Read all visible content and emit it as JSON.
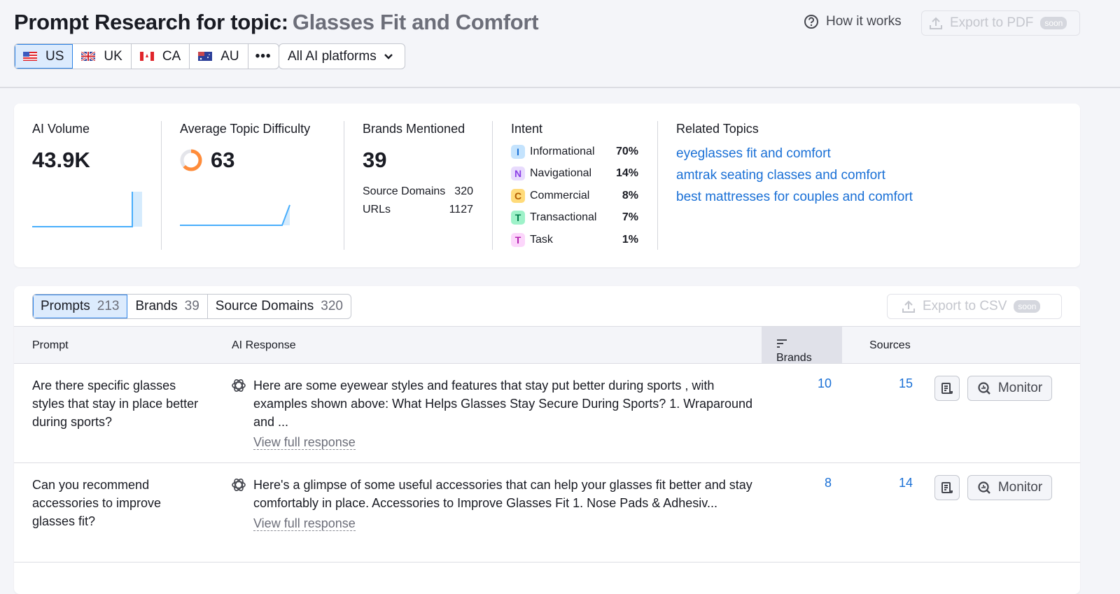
{
  "header": {
    "title": "Prompt Research for topic:",
    "topic": "Glasses Fit and Comfort",
    "how_it_works": "How it works",
    "export_pdf": "Export to PDF",
    "soon": "soon",
    "countries": [
      {
        "code": "US",
        "selected": true
      },
      {
        "code": "UK"
      },
      {
        "code": "CA"
      },
      {
        "code": "AU"
      }
    ],
    "more": "•••",
    "platform": "All AI platforms"
  },
  "metrics": {
    "ai_volume": {
      "label": "AI Volume",
      "value": "43.9K"
    },
    "difficulty": {
      "label": "Average Topic Difficulty",
      "value": "63",
      "percent": 63,
      "color": "#ff8c3a"
    },
    "brands": {
      "label": "Brands Mentioned",
      "value": "39",
      "source_domains_label": "Source Domains",
      "source_domains": "320",
      "urls_label": "URLs",
      "urls": "1127"
    },
    "intent": {
      "label": "Intent",
      "items": [
        {
          "letter": "I",
          "name": "Informational",
          "pct": "70%",
          "bg": "#c4e3fd",
          "fg": "#1a70d6"
        },
        {
          "letter": "N",
          "name": "Navigational",
          "pct": "14%",
          "bg": "#e8dbfd",
          "fg": "#8b3fe6"
        },
        {
          "letter": "C",
          "name": "Commercial",
          "pct": "8%",
          "bg": "#ffdb7a",
          "fg": "#b35d00"
        },
        {
          "letter": "T",
          "name": "Transactional",
          "pct": "7%",
          "bg": "#9ef2c9",
          "fg": "#007c4a"
        },
        {
          "letter": "T",
          "name": "Task",
          "pct": "1%",
          "bg": "#fcd6fb",
          "fg": "#b323b0"
        }
      ]
    },
    "related": {
      "label": "Related Topics",
      "items": [
        "eyeglasses fit and comfort",
        "amtrak seating classes and comfort",
        "best mattresses for couples and comfort"
      ]
    }
  },
  "tabs": [
    {
      "label": "Prompts",
      "count": "213",
      "selected": true
    },
    {
      "label": "Brands",
      "count": "39"
    },
    {
      "label": "Source Domains",
      "count": "320"
    }
  ],
  "export_csv": "Export to CSV",
  "table": {
    "columns": [
      "Prompt",
      "AI Response",
      "Brands",
      "Sources"
    ],
    "rows": [
      {
        "prompt": "Are there specific glasses styles that stay in place better during sports?",
        "response": "Here are some eyewear styles and features that stay put better during sports , with examples shown above: What Helps Glasses Stay Secure During Sports? 1. Wraparound and ...",
        "view": "View full response",
        "brands": "10",
        "sources": "15",
        "monitor": "Monitor"
      },
      {
        "prompt": "Can you recommend accessories to improve glasses fit?",
        "response": "Here's a glimpse of some useful accessories that can help your glasses fit better and stay comfortably in place. Accessories to Improve Glasses Fit 1. Nose Pads & Adhesiv...",
        "view": "View full response",
        "brands": "8",
        "sources": "14",
        "monitor": "Monitor"
      }
    ]
  }
}
